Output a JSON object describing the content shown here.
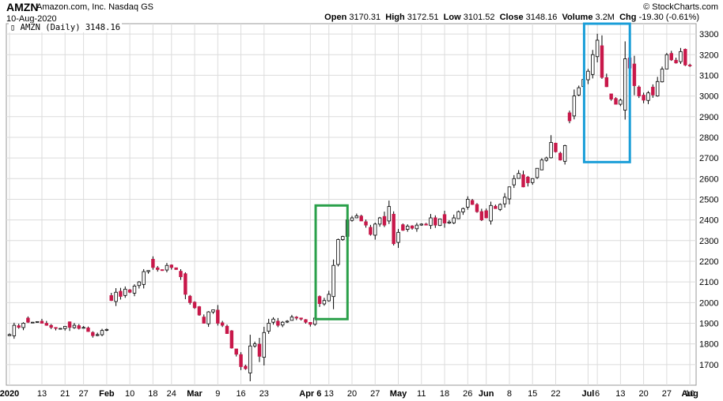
{
  "header": {
    "symbol": "AMZN",
    "company": "Amazon.com, Inc.",
    "exchange": "Nasdaq GS",
    "date": "10-Aug-2020",
    "brand": "© StockCharts.com",
    "brand_icon": "copyright-icon",
    "open_label": "Open",
    "open": "3170.31",
    "high_label": "High",
    "high": "3172.51",
    "low_label": "Low",
    "low": "3101.52",
    "close_label": "Close",
    "close": "3148.16",
    "volume_label": "Volume",
    "volume": "3.2M",
    "chg_label": "Chg",
    "chg": "-19.30 (-0.61%)",
    "chg_icon": "down-triangle-icon"
  },
  "legend": {
    "text": "AMZN (Daily) 3148.16",
    "icon": "candlestick-icon"
  },
  "colors": {
    "up_candle": "#ffffff",
    "down_candle": "#c8184a",
    "outline": "#000000",
    "grid": "#dcdcdc",
    "green_box": "#2aa04a",
    "blue_box": "#1a9ed8"
  },
  "chart_data": {
    "type": "candlestick",
    "ylim": [
      1600,
      3350
    ],
    "y_ticks": [
      1700,
      1800,
      1900,
      2000,
      2100,
      2200,
      2300,
      2400,
      2500,
      2600,
      2700,
      2800,
      2900,
      3000,
      3100,
      3200,
      3300
    ],
    "y_axis_side": "right",
    "x_ticks": [
      "2020",
      "13",
      "21",
      "27",
      "Feb",
      "10",
      "18",
      "24",
      "Mar",
      "9",
      "16",
      "23",
      "Apr 6",
      "13",
      "20",
      "27",
      "May",
      "11",
      "18",
      "26",
      "Jun",
      "8",
      "15",
      "22",
      "Jul",
      "6",
      "13",
      "20",
      "27",
      "Aug",
      "10"
    ],
    "bold_x_ticks": [
      "2020",
      "Feb",
      "Mar",
      "Apr",
      "May",
      "Jun",
      "Jul",
      "Aug"
    ],
    "grid": true,
    "closes": [
      1845,
      1890,
      1880,
      1900,
      1905,
      1905,
      1908,
      1900,
      1890,
      1880,
      1875,
      1875,
      1885,
      1880,
      1890,
      1875,
      1880,
      1860,
      1840,
      1845,
      1865,
      1870,
      2010,
      2050,
      2030,
      2065,
      2050,
      2080,
      2100,
      2150,
      2155,
      2170,
      2160,
      2155,
      2180,
      2170,
      2160,
      2125,
      2040,
      2000,
      1975,
      1940,
      1900,
      1955,
      1965,
      1900,
      1890,
      1850,
      1780,
      1750,
      1690,
      1680,
      1790,
      1800,
      1740,
      1855,
      1900,
      1920,
      1890,
      1905,
      1910,
      1930,
      1925,
      1920,
      1905,
      1895,
      1925,
      1995,
      2010,
      2040,
      2180,
      2305,
      2320,
      2400,
      2410,
      2420,
      2395,
      2375,
      2330,
      2380,
      2410,
      2375,
      2465,
      2285,
      2340,
      2350,
      2370,
      2360,
      2375,
      2380,
      2375,
      2410,
      2375,
      2405,
      2385,
      2390,
      2410,
      2440,
      2455,
      2500,
      2475,
      2440,
      2400,
      2410,
      2470,
      2455,
      2475,
      2510,
      2560,
      2600,
      2625,
      2560,
      2580,
      2600,
      2650,
      2690,
      2700,
      2775,
      2730,
      2690,
      2760,
      2880,
      3000,
      3040,
      3080,
      3120,
      3200,
      3270,
      3090,
      3045,
      2985,
      2960,
      2980,
      3180,
      3135,
      3050,
      3000,
      2980,
      3015,
      3005,
      3070,
      3130,
      3200,
      3175,
      3160,
      3215,
      3150,
      3148
    ],
    "first_candle_date": "2020-01-02"
  },
  "annotations": [
    {
      "type": "rectangle",
      "color": "green",
      "from_date": "2020-04-08",
      "to_date": "2020-04-16",
      "low": 1920,
      "high": 2470
    },
    {
      "type": "rectangle",
      "color": "blue",
      "from_date": "2020-07-01",
      "to_date": "2020-07-14",
      "low": 2680,
      "high": 3350
    }
  ]
}
